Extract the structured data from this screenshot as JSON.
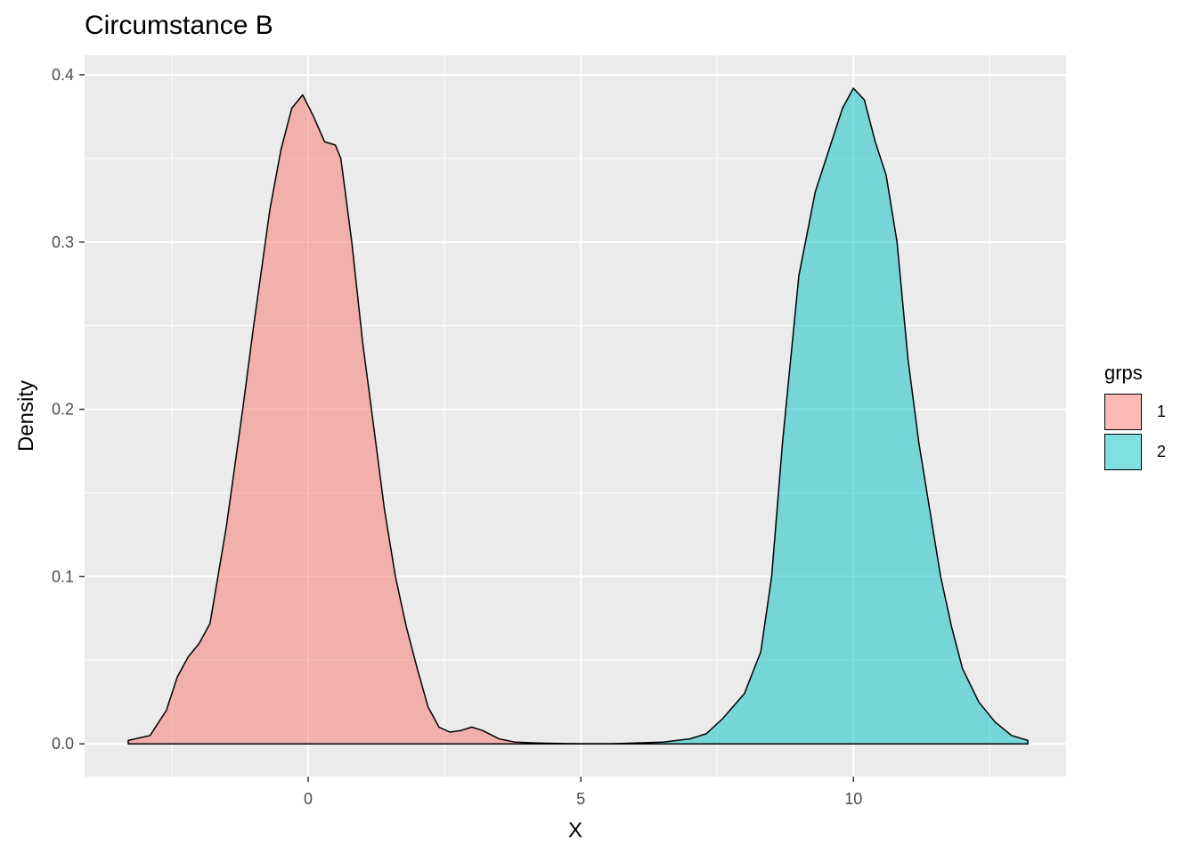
{
  "chart_data": {
    "type": "area",
    "title": "Circumstance B",
    "xlabel": "X",
    "ylabel": "Density",
    "xlim": [
      -4.1,
      13.9
    ],
    "ylim": [
      -0.0196,
      0.4117
    ],
    "x_ticks": [
      0,
      5,
      10
    ],
    "x_tick_labels": [
      "0",
      "5",
      "10"
    ],
    "y_ticks": [
      0.0,
      0.1,
      0.2,
      0.3,
      0.4
    ],
    "y_tick_labels": [
      "0.0",
      "0.1",
      "0.2",
      "0.3",
      "0.4"
    ],
    "grid": true,
    "legend": {
      "title": "grps",
      "position": "right"
    },
    "series": [
      {
        "name": "1",
        "color": "#F8766D",
        "x": [
          -3.3,
          -2.9,
          -2.6,
          -2.4,
          -2.2,
          -2.0,
          -1.8,
          -1.5,
          -1.2,
          -1.0,
          -0.7,
          -0.5,
          -0.3,
          -0.1,
          0.1,
          0.3,
          0.5,
          0.6,
          0.8,
          1.0,
          1.2,
          1.4,
          1.6,
          1.8,
          2.0,
          2.2,
          2.4,
          2.6,
          2.8,
          3.0,
          3.2,
          3.5,
          3.8,
          4.2,
          4.6,
          5.0,
          5.5,
          6.0,
          6.5,
          7.0,
          13.2
        ],
        "y": [
          0.002,
          0.005,
          0.02,
          0.04,
          0.052,
          0.06,
          0.072,
          0.13,
          0.2,
          0.25,
          0.32,
          0.355,
          0.38,
          0.388,
          0.375,
          0.36,
          0.358,
          0.35,
          0.3,
          0.24,
          0.19,
          0.14,
          0.1,
          0.07,
          0.045,
          0.022,
          0.01,
          0.007,
          0.008,
          0.01,
          0.008,
          0.003,
          0.001,
          0.0005,
          0.0002,
          0.0001,
          0.0001,
          0.0,
          0.0,
          0.0,
          0.0
        ]
      },
      {
        "name": "2",
        "color": "#00BFC4",
        "x": [
          -3.3,
          4.5,
          5.5,
          6.0,
          6.5,
          7.0,
          7.3,
          7.6,
          8.0,
          8.3,
          8.5,
          8.7,
          9.0,
          9.3,
          9.6,
          9.8,
          10.0,
          10.2,
          10.4,
          10.6,
          10.8,
          11.0,
          11.2,
          11.4,
          11.6,
          11.8,
          12.0,
          12.3,
          12.6,
          12.9,
          13.2
        ],
        "y": [
          0.0,
          0.0,
          0.0,
          0.0005,
          0.001,
          0.003,
          0.006,
          0.015,
          0.03,
          0.055,
          0.1,
          0.18,
          0.28,
          0.33,
          0.36,
          0.38,
          0.392,
          0.385,
          0.36,
          0.34,
          0.3,
          0.23,
          0.18,
          0.14,
          0.1,
          0.07,
          0.045,
          0.025,
          0.013,
          0.005,
          0.002
        ]
      }
    ]
  }
}
